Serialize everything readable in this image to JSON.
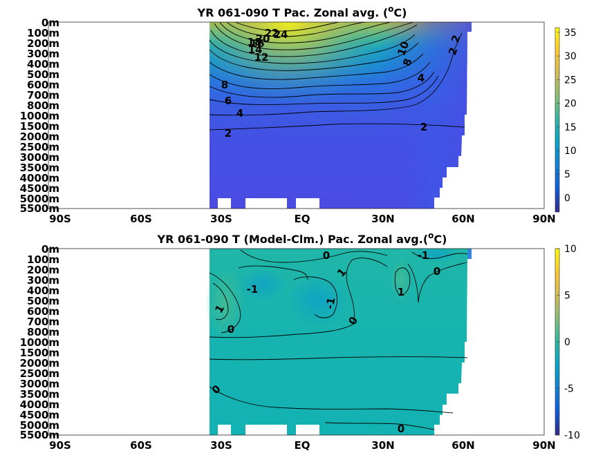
{
  "colors": {
    "parula_stops": [
      "#352a87",
      "#0f5cdd",
      "#1481d6",
      "#06a4ca",
      "#2eb7a4",
      "#87bf77",
      "#d1bb59",
      "#fec832",
      "#f9fb0e"
    ],
    "land": "#ffffff"
  },
  "chart_data": [
    {
      "type": "heatmap",
      "title": "YR 061-090 T Pac. Zonal avg. (oC)",
      "title_parts": {
        "pre": "YR 061-090 T Pac. Zonal avg. (",
        "sup": "o",
        "post": "C)"
      },
      "xlabel": "",
      "ylabel": "",
      "x_ticks": [
        "90S",
        "60S",
        "30S",
        "EQ",
        "30N",
        "60N",
        "90N"
      ],
      "y_ticks": [
        "0m",
        "100m",
        "200m",
        "300m",
        "400m",
        "500m",
        "600m",
        "700m",
        "800m",
        "1000m",
        "1500m",
        "2000m",
        "2500m",
        "3000m",
        "3500m",
        "4000m",
        "4500m",
        "5000m",
        "5500m"
      ],
      "colorbar_ticks": [
        "0",
        "5",
        "10",
        "15",
        "20",
        "25",
        "30",
        "35"
      ],
      "clim": [
        -3,
        36
      ],
      "data_lat_range": [
        -35,
        61
      ],
      "contour_levels": [
        2,
        4,
        6,
        8,
        10,
        12,
        14,
        16,
        18,
        20,
        22,
        24
      ],
      "contour_labels": [
        "24",
        "22",
        "20",
        "18",
        "16",
        "14",
        "12",
        "10",
        "8",
        "6",
        "8",
        "4",
        "4",
        "2",
        "2",
        "2",
        "2"
      ]
    },
    {
      "type": "heatmap",
      "title": "YR 061-090 T (Model-Clm.) Pac. Zonal avg.(oC)",
      "title_parts": {
        "pre": "YR 061-090 T (Model-Clm.) Pac. Zonal avg.(",
        "sup": "o",
        "post": "C)"
      },
      "xlabel": "",
      "ylabel": "",
      "x_ticks": [
        "90S",
        "60S",
        "30S",
        "EQ",
        "30N",
        "60N",
        "90N"
      ],
      "y_ticks": [
        "0m",
        "100m",
        "200m",
        "300m",
        "400m",
        "500m",
        "600m",
        "700m",
        "800m",
        "1000m",
        "1500m",
        "2000m",
        "2500m",
        "3000m",
        "3500m",
        "4000m",
        "4500m",
        "5000m",
        "5500m"
      ],
      "colorbar_ticks": [
        "10",
        "5",
        "0",
        "-5",
        "-10"
      ],
      "clim": [
        -10,
        10
      ],
      "data_lat_range": [
        -35,
        61
      ],
      "contour_levels": [
        -1,
        0,
        1
      ],
      "contour_labels": [
        "0",
        "-1",
        "0",
        "1",
        "0",
        "-1",
        "1",
        "1",
        "-1",
        "0",
        "0",
        "0",
        "0"
      ]
    }
  ]
}
